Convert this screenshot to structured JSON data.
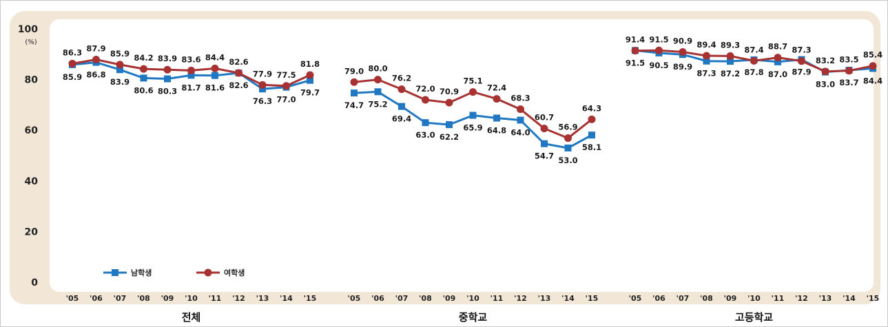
{
  "chart_data": {
    "type": "line",
    "unit": "(%)",
    "ylim": [
      0,
      100
    ],
    "yticks": [
      "0",
      "20",
      "40",
      "60",
      "80",
      "100"
    ],
    "x": [
      "'05",
      "'06",
      "'07",
      "'08",
      "'09",
      "'10",
      "'11",
      "'12",
      "'13",
      "'14",
      "'15"
    ],
    "legend_position": "bottom-left",
    "colors": {
      "male": "#1f78c1",
      "female": "#a83232",
      "panel_bg": "#f2e6d6"
    },
    "groups": [
      {
        "name": "전체",
        "series": [
          {
            "name": "남학생",
            "values": [
              85.9,
              86.8,
              83.9,
              80.6,
              80.3,
              81.7,
              81.6,
              82.6,
              76.3,
              77.0,
              79.7
            ],
            "labels": [
              "85.9",
              "86.8",
              "83.9",
              "80.6",
              "80.3",
              "81.7",
              "81.6",
              "82.6",
              "76.3",
              "77.0",
              "79.7"
            ]
          },
          {
            "name": "여학생",
            "values": [
              86.3,
              87.9,
              85.9,
              84.2,
              83.9,
              83.6,
              84.4,
              82.6,
              77.9,
              77.5,
              81.8
            ],
            "labels": [
              "86.3",
              "87.9",
              "85.9",
              "84.2",
              "83.9",
              "83.6",
              "84.4",
              "82.6",
              "77.9",
              "77.5",
              "81.8"
            ]
          }
        ]
      },
      {
        "name": "중학교",
        "series": [
          {
            "name": "남학생",
            "values": [
              74.7,
              75.2,
              69.4,
              63.0,
              62.2,
              65.9,
              64.8,
              64.0,
              54.7,
              53.0,
              58.1
            ],
            "labels": [
              "74.7",
              "75.2",
              "69.4",
              "63.0",
              "62.2",
              "65.9",
              "64.8",
              "64.0",
              "54.7",
              "53.0",
              "58.1"
            ]
          },
          {
            "name": "여학생",
            "values": [
              79.0,
              80.0,
              76.2,
              72.0,
              70.9,
              75.1,
              72.4,
              68.3,
              60.7,
              56.9,
              64.3
            ],
            "labels": [
              "79.0",
              "80.0",
              "76.2",
              "72.0",
              "70.9",
              "75.1",
              "72.4",
              "68.3",
              "60.7",
              "56.9",
              "64.3"
            ]
          }
        ]
      },
      {
        "name": "고등학교",
        "series": [
          {
            "name": "남학생",
            "values": [
              91.5,
              90.5,
              89.9,
              87.3,
              87.2,
              87.8,
              87.0,
              87.9,
              83.0,
              83.7,
              84.4
            ],
            "labels": [
              "91.5",
              "90.5",
              "89.9",
              "87.3",
              "87.2",
              "87.8",
              "87.0",
              "87.9",
              "83.0",
              "83.7",
              "84.4"
            ]
          },
          {
            "name": "여학생",
            "values": [
              91.4,
              91.5,
              90.9,
              89.4,
              89.3,
              87.4,
              88.7,
              87.3,
              83.2,
              83.5,
              85.4
            ],
            "labels": [
              "91.4",
              "91.5",
              "90.9",
              "89.4",
              "89.3",
              "87.4",
              "88.7",
              "87.3",
              "83.2",
              "83.5",
              "85.4"
            ]
          }
        ]
      }
    ]
  }
}
